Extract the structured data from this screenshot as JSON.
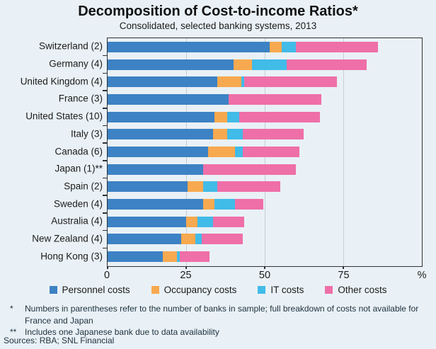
{
  "title": "Decomposition of Cost-to-income Ratios*",
  "subtitle": "Consolidated, selected banking systems, 2013",
  "chart_data": {
    "type": "bar",
    "orientation": "horizontal",
    "stacked": true,
    "title": "Decomposition of Cost-to-income Ratios*",
    "subtitle": "Consolidated, selected banking systems, 2013",
    "categories": [
      "Switzerland (2)",
      "Germany (4)",
      "United Kingdom (4)",
      "France (3)",
      "United States (10)",
      "Italy (3)",
      "Canada (6)",
      "Japan (1)**",
      "Spain (2)",
      "Sweden (4)",
      "Australia (4)",
      "New Zealand (4)",
      "Hong Kong (3)"
    ],
    "series": [
      {
        "name": "Personnel costs",
        "color": "#3d82c4",
        "values": [
          51.5,
          40,
          35,
          38.5,
          34,
          33.5,
          32,
          30.5,
          25.5,
          30.5,
          25,
          23.5,
          17.5
        ]
      },
      {
        "name": "Occupancy costs",
        "color": "#f7a94f",
        "values": [
          4,
          6,
          7.5,
          0,
          4,
          4.5,
          8.5,
          0,
          5,
          3.5,
          3.5,
          4.5,
          4.5
        ]
      },
      {
        "name": "IT costs",
        "color": "#41bbe8",
        "values": [
          4.5,
          11,
          1,
          0,
          4,
          5,
          2.5,
          0,
          4.5,
          6.5,
          5,
          2,
          1
        ]
      },
      {
        "name": "Other costs",
        "color": "#ef6fa8",
        "values": [
          26,
          25.5,
          29.5,
          29.5,
          25.5,
          19.5,
          18,
          29.5,
          20,
          9,
          10,
          13,
          9.5
        ]
      }
    ],
    "totals": [
      86,
      82.5,
      73,
      68,
      67.5,
      62.5,
      61,
      60,
      55,
      49.5,
      43.5,
      43,
      32.5
    ],
    "xlim": [
      0,
      100
    ],
    "xticks": [
      0,
      25,
      50,
      75
    ],
    "x_unit": "%",
    "gridlines": [
      25,
      50,
      75
    ],
    "grid": "vertical",
    "legend_position": "bottom"
  },
  "footnotes": [
    {
      "marker": "*",
      "text": "Numbers in parentheses refer to the number of banks in sample; full breakdown of costs not available for France and Japan"
    },
    {
      "marker": "**",
      "text": "Includes one Japanese bank due to data availability"
    }
  ],
  "sources": "Sources: RBA; SNL Financial",
  "colors": {
    "background": "#e9f1f6",
    "frame": "#2b3238",
    "gridline": "#c7ced3",
    "personnel": "#3d82c4",
    "occupancy": "#f7a94f",
    "it": "#41bbe8",
    "other": "#ef6fa8"
  }
}
